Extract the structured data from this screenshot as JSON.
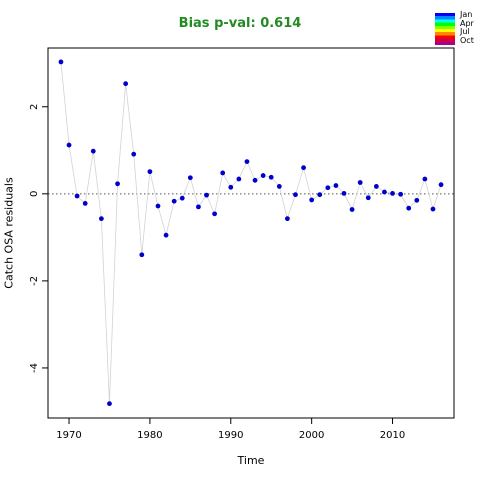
{
  "chart_data": {
    "type": "scatter",
    "title": "Bias p-val: 0.614",
    "xlabel": "Time",
    "ylabel": "Catch OSA residuals",
    "xlim": [
      1967.4,
      2017.6
    ],
    "ylim": [
      -5.15,
      3.35
    ],
    "xticks": [
      1970,
      1980,
      1990,
      2000,
      2010
    ],
    "yticks": [
      -4,
      -2,
      0,
      2
    ],
    "reference_line": 0,
    "connect_points": true,
    "point_color": "#0000CD",
    "line_color": "#D3D3D3",
    "title_color": "#228B22",
    "x": [
      1969,
      1970,
      1971,
      1972,
      1973,
      1974,
      1975,
      1976,
      1977,
      1978,
      1979,
      1980,
      1981,
      1982,
      1983,
      1984,
      1985,
      1986,
      1987,
      1988,
      1989,
      1990,
      1991,
      1992,
      1993,
      1994,
      1995,
      1996,
      1997,
      1998,
      1999,
      2000,
      2001,
      2002,
      2003,
      2004,
      2005,
      2006,
      2007,
      2008,
      2009,
      2010,
      2011,
      2012,
      2013,
      2014,
      2015,
      2016
    ],
    "y": [
      3.03,
      1.12,
      -0.05,
      -0.22,
      0.98,
      -0.57,
      -4.82,
      0.23,
      2.53,
      0.91,
      -1.4,
      0.51,
      -0.28,
      -0.95,
      -0.17,
      -0.1,
      0.37,
      -0.3,
      -0.03,
      -0.46,
      0.48,
      0.15,
      0.34,
      0.74,
      0.31,
      0.42,
      0.38,
      0.17,
      -0.57,
      -0.02,
      0.6,
      -0.14,
      -0.02,
      0.14,
      0.19,
      0.01,
      -0.36,
      0.26,
      -0.09,
      0.17,
      0.04,
      0.01,
      -0.01,
      -0.33,
      -0.15,
      0.34,
      -0.35,
      0.21
    ]
  },
  "legend": {
    "labels": [
      "Jan",
      "Apr",
      "Jul",
      "Oct"
    ],
    "colors": [
      "#0000FF",
      "#0088FF",
      "#00FFFF",
      "#00FF00",
      "#88FF00",
      "#FFFF00",
      "#FF8800",
      "#FF0000",
      "#CC0044",
      "#AA0088"
    ]
  }
}
